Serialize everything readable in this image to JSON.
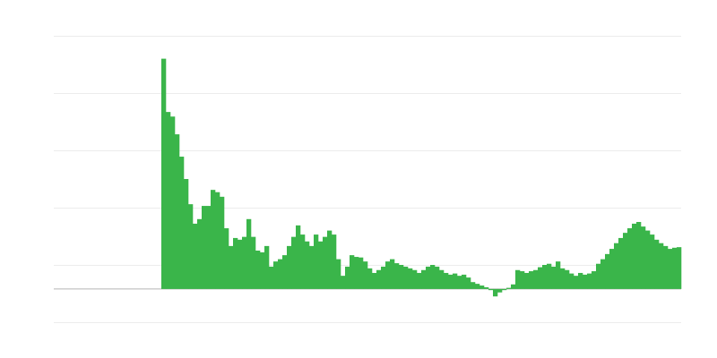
{
  "chart_data": {
    "type": "bar",
    "color": "#3ab54a",
    "values": [
      0,
      0,
      0,
      0,
      0,
      0,
      0,
      0,
      0,
      0,
      0,
      0,
      0,
      0,
      0,
      0,
      0,
      0,
      0,
      0,
      0,
      0,
      0,
      0,
      40.2,
      30.9,
      30.1,
      27.0,
      23.1,
      19.2,
      14.8,
      11.4,
      12.2,
      14.5,
      14.5,
      17.3,
      16.9,
      16.1,
      10.6,
      7.5,
      8.9,
      8.6,
      9.1,
      12.2,
      9.1,
      6.7,
      6.4,
      7.5,
      3.9,
      4.8,
      5.2,
      5.9,
      7.5,
      9.1,
      11.1,
      9.5,
      8.3,
      7.5,
      9.5,
      8.3,
      9.1,
      10.2,
      9.5,
      5.2,
      2.3,
      3.9,
      5.9,
      5.6,
      5.5,
      4.8,
      3.6,
      2.8,
      3.3,
      3.9,
      4.8,
      5.2,
      4.5,
      4.2,
      3.9,
      3.6,
      3.3,
      2.8,
      3.3,
      3.9,
      4.2,
      3.9,
      3.3,
      2.8,
      2.5,
      2.7,
      2.3,
      2.5,
      2.0,
      1.2,
      0.9,
      0.6,
      0.3,
      -0.2,
      -1.3,
      -0.6,
      -0.2,
      0.2,
      0.8,
      3.3,
      3.1,
      2.8,
      3.1,
      3.3,
      3.8,
      4.2,
      4.4,
      3.9,
      4.8,
      3.6,
      3.3,
      2.7,
      2.3,
      2.8,
      2.5,
      2.7,
      3.1,
      4.4,
      5.2,
      6.1,
      7.0,
      8.0,
      8.9,
      9.8,
      10.6,
      11.4,
      11.7,
      10.9,
      10.2,
      9.5,
      8.6,
      8.0,
      7.5,
      7.0,
      7.2,
      7.3
    ],
    "ylim": [
      -5.8,
      44.2
    ],
    "yticks": [
      -5.8,
      4.2,
      14.2,
      24.2,
      34.2,
      44.2
    ],
    "grid": true
  }
}
